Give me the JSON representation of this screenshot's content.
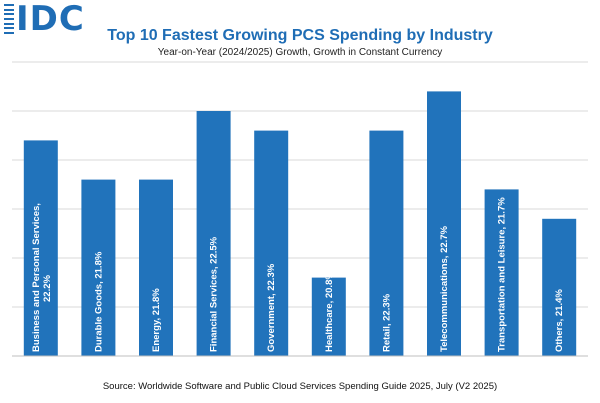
{
  "header": {
    "logo_text": "IDC",
    "logo_icon": "idc-stripes-icon"
  },
  "colors": {
    "bar": "#2173bb",
    "accent": "#1f6db5",
    "grid": "#d9d9d9"
  },
  "chart_data": {
    "type": "bar",
    "title": "Top 10 Fastest Growing PCS Spending by Industry",
    "subtitle": "Year-on-Year (2024/2025) Growth, Growth in Constant Currency",
    "xlabel": "",
    "ylabel": "",
    "ylim": [
      20.0,
      23.0
    ],
    "grid": true,
    "categories": [
      "Business and Personal Services",
      "Durable Goods",
      "Energy",
      "Financial Services",
      "Government",
      "Healthcare",
      "Retail",
      "Telecommunications",
      "Transportation and Leisure",
      "Others"
    ],
    "values": [
      22.2,
      21.8,
      21.8,
      22.5,
      22.3,
      20.8,
      22.3,
      22.7,
      21.7,
      21.4
    ],
    "bar_labels": [
      [
        "Business and Personal Services,",
        "22.2%"
      ],
      [
        "Durable Goods, 21.8%"
      ],
      [
        "Energy, 21.8%"
      ],
      [
        "Financial Services, 22.5%"
      ],
      [
        "Government, 22.3%"
      ],
      [
        "Healthcare, 20.8%"
      ],
      [
        "Retail, 22.3%"
      ],
      [
        "Telecommunications, 22.7%"
      ],
      [
        "Transportation and Leisure, 21.7%"
      ],
      [
        "Others, 21.4%"
      ]
    ]
  },
  "footer": {
    "source": "Source: Worldwide Software and Public Cloud Services Spending Guide 2025, July (V2 2025)"
  }
}
